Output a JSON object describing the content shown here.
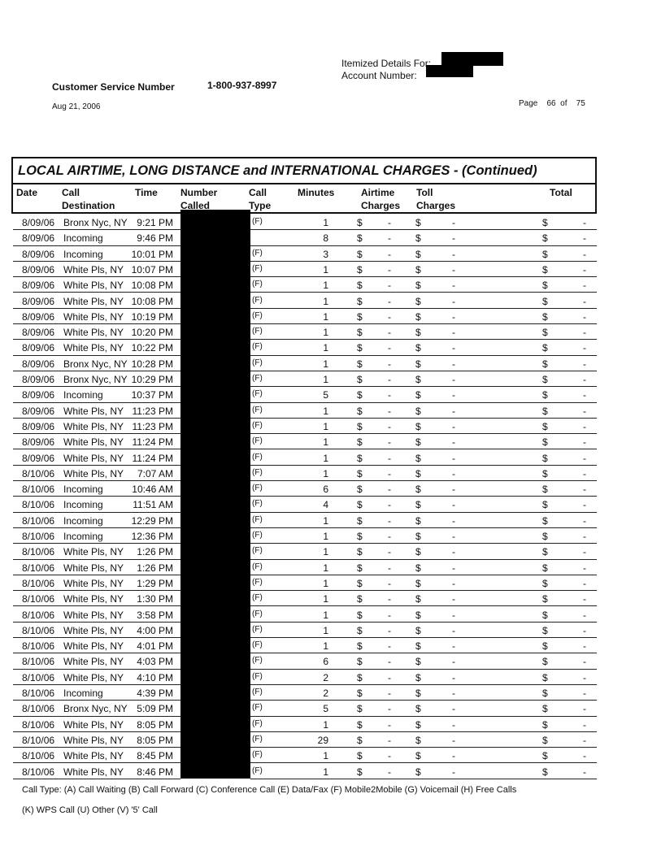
{
  "header": {
    "itemized_label": "Itemized Details For:",
    "account_label": "Account Number:",
    "cs_label": "Customer Service Number",
    "cs_number": "1-800-937-8997",
    "date": "Aug 21, 2006",
    "page_label": "Page",
    "page_num": "66",
    "of_label": "of",
    "page_total": "75"
  },
  "section_title": "LOCAL AIRTIME, LONG DISTANCE and INTERNATIONAL CHARGES  - (Continued)",
  "columns": [
    [
      "Date",
      ""
    ],
    [
      "Call",
      "Destination"
    ],
    [
      "Time",
      ""
    ],
    [
      "Number",
      "Called"
    ],
    [
      "Call",
      "Type"
    ],
    [
      "Minutes",
      ""
    ],
    [
      "Airtime",
      "Charges"
    ],
    [
      "Toll",
      "Charges"
    ],
    [
      "Total",
      ""
    ]
  ],
  "currency": "$",
  "dash": "-",
  "rows": [
    [
      "8/09/06",
      "Bronx Nyc, NY",
      "9:21 PM",
      "(F)",
      "1"
    ],
    [
      "8/09/06",
      "Incoming",
      "9:46 PM",
      "",
      "8"
    ],
    [
      "8/09/06",
      "Incoming",
      "10:01 PM",
      "(F)",
      "3"
    ],
    [
      "8/09/06",
      "White Pls, NY",
      "10:07 PM",
      "(F)",
      "1"
    ],
    [
      "8/09/06",
      "White Pls, NY",
      "10:08 PM",
      "(F)",
      "1"
    ],
    [
      "8/09/06",
      "White Pls, NY",
      "10:08 PM",
      "(F)",
      "1"
    ],
    [
      "8/09/06",
      "White Pls, NY",
      "10:19 PM",
      "(F)",
      "1"
    ],
    [
      "8/09/06",
      "White Pls, NY",
      "10:20 PM",
      "(F)",
      "1"
    ],
    [
      "8/09/06",
      "White Pls, NY",
      "10:22 PM",
      "(F)",
      "1"
    ],
    [
      "8/09/06",
      "Bronx Nyc, NY",
      "10:28 PM",
      "(F)",
      "1"
    ],
    [
      "8/09/06",
      "Bronx Nyc, NY",
      "10:29 PM",
      "(F)",
      "1"
    ],
    [
      "8/09/06",
      "Incoming",
      "10:37 PM",
      "(F)",
      "5"
    ],
    [
      "8/09/06",
      "White Pls, NY",
      "11:23 PM",
      "(F)",
      "1"
    ],
    [
      "8/09/06",
      "White Pls, NY",
      "11:23 PM",
      "(F)",
      "1"
    ],
    [
      "8/09/06",
      "White Pls, NY",
      "11:24 PM",
      "(F)",
      "1"
    ],
    [
      "8/09/06",
      "White Pls, NY",
      "11:24 PM",
      "(F)",
      "1"
    ],
    [
      "8/10/06",
      "White Pls, NY",
      "7:07 AM",
      "(F)",
      "1"
    ],
    [
      "8/10/06",
      "Incoming",
      "10:46 AM",
      "(F)",
      "6"
    ],
    [
      "8/10/06",
      "Incoming",
      "11:51 AM",
      "(F)",
      "4"
    ],
    [
      "8/10/06",
      "Incoming",
      "12:29 PM",
      "(F)",
      "1"
    ],
    [
      "8/10/06",
      "Incoming",
      "12:36 PM",
      "(F)",
      "1"
    ],
    [
      "8/10/06",
      "White Pls, NY",
      "1:26 PM",
      "(F)",
      "1"
    ],
    [
      "8/10/06",
      "White Pls, NY",
      "1:26 PM",
      "(F)",
      "1"
    ],
    [
      "8/10/06",
      "White Pls, NY",
      "1:29 PM",
      "(F)",
      "1"
    ],
    [
      "8/10/06",
      "White Pls, NY",
      "1:30 PM",
      "(F)",
      "1"
    ],
    [
      "8/10/06",
      "White Pls, NY",
      "3:58 PM",
      "(F)",
      "1"
    ],
    [
      "8/10/06",
      "White Pls, NY",
      "4:00 PM",
      "(F)",
      "1"
    ],
    [
      "8/10/06",
      "White Pls, NY",
      "4:01 PM",
      "(F)",
      "1"
    ],
    [
      "8/10/06",
      "White Pls, NY",
      "4:03 PM",
      "(F)",
      "6"
    ],
    [
      "8/10/06",
      "White Pls, NY",
      "4:10 PM",
      "(F)",
      "2"
    ],
    [
      "8/10/06",
      "Incoming",
      "4:39 PM",
      "(F)",
      "2"
    ],
    [
      "8/10/06",
      "Bronx Nyc, NY",
      "5:09 PM",
      "(F)",
      "5"
    ],
    [
      "8/10/06",
      "White Pls, NY",
      "8:05 PM",
      "(F)",
      "1"
    ],
    [
      "8/10/06",
      "White Pls, NY",
      "8:05 PM",
      "(F)",
      "29"
    ],
    [
      "8/10/06",
      "White Pls, NY",
      "8:45 PM",
      "(F)",
      "1"
    ],
    [
      "8/10/06",
      "White Pls, NY",
      "8:46 PM",
      "(F)",
      "1"
    ]
  ],
  "footer": {
    "line1": "Call Type: (A) Call Waiting (B) Call Forward (C) Conference Call (E) Data/Fax (F) Mobile2Mobile (G) Voicemail (H) Free Calls",
    "line2": "(K) WPS Call (U) Other (V) '5' Call"
  }
}
